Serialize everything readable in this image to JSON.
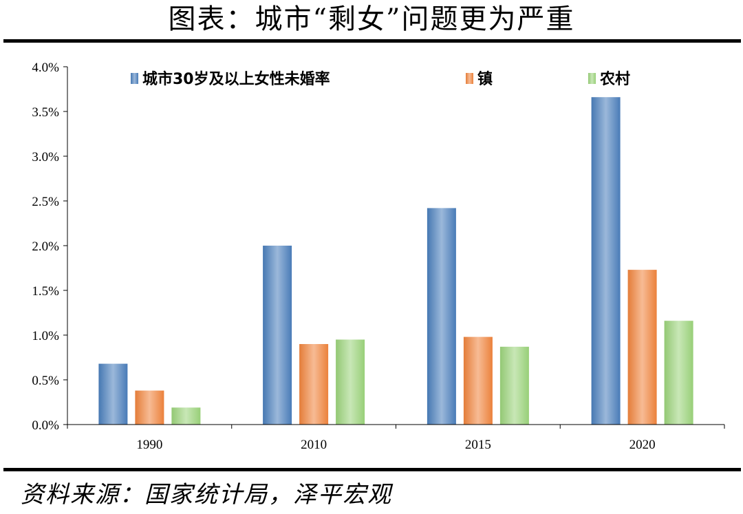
{
  "title": "图表：城市“剩女”问题更为严重",
  "source": "资料来源：国家统计局，泽平宏观",
  "colors": {
    "series_1": "#4a7ebb",
    "series_2": "#f0843c",
    "series_3": "#9bd37a"
  },
  "chart_data": {
    "type": "bar",
    "categories": [
      "1990",
      "2010",
      "2015",
      "2020"
    ],
    "series": [
      {
        "name": "城市30岁及以上女性未婚率",
        "values": [
          0.0068,
          0.02,
          0.0242,
          0.0366
        ]
      },
      {
        "name": "镇",
        "values": [
          0.0038,
          0.009,
          0.0098,
          0.0173
        ]
      },
      {
        "name": "农村",
        "values": [
          0.0019,
          0.0095,
          0.0087,
          0.0116
        ]
      }
    ],
    "yticks": [
      "0.0%",
      "0.5%",
      "1.0%",
      "1.5%",
      "2.0%",
      "2.5%",
      "3.0%",
      "3.5%",
      "4.0%"
    ],
    "ylim": [
      0,
      0.04
    ],
    "grid": false,
    "legend_position": "top"
  }
}
